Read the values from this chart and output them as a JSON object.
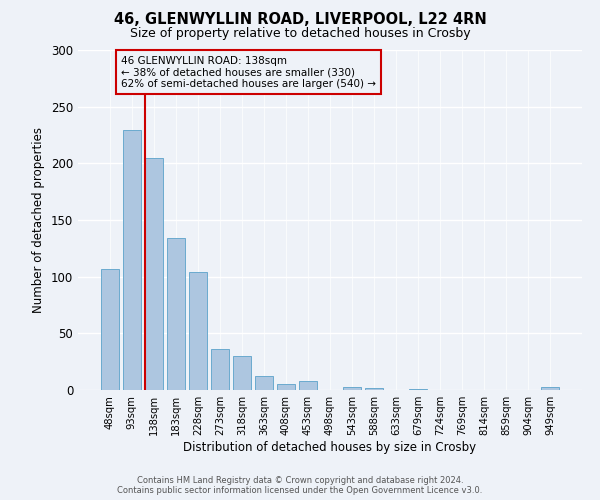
{
  "title": "46, GLENWYLLIN ROAD, LIVERPOOL, L22 4RN",
  "subtitle": "Size of property relative to detached houses in Crosby",
  "xlabel": "Distribution of detached houses by size in Crosby",
  "ylabel": "Number of detached properties",
  "categories": [
    "48sqm",
    "93sqm",
    "138sqm",
    "183sqm",
    "228sqm",
    "273sqm",
    "318sqm",
    "363sqm",
    "408sqm",
    "453sqm",
    "498sqm",
    "543sqm",
    "588sqm",
    "633sqm",
    "679sqm",
    "724sqm",
    "769sqm",
    "814sqm",
    "859sqm",
    "904sqm",
    "949sqm"
  ],
  "values": [
    107,
    229,
    205,
    134,
    104,
    36,
    30,
    12,
    5,
    8,
    0,
    3,
    2,
    0,
    1,
    0,
    0,
    0,
    0,
    0,
    3
  ],
  "bar_color": "#adc6e0",
  "bar_edge_color": "#6aaacf",
  "reference_line_index": 2,
  "reference_line_color": "#cc0000",
  "annotation_title": "46 GLENWYLLIN ROAD: 138sqm",
  "annotation_line1": "← 38% of detached houses are smaller (330)",
  "annotation_line2": "62% of semi-detached houses are larger (540) →",
  "annotation_box_color": "#cc0000",
  "ylim": [
    0,
    300
  ],
  "yticks": [
    0,
    50,
    100,
    150,
    200,
    250,
    300
  ],
  "footer1": "Contains HM Land Registry data © Crown copyright and database right 2024.",
  "footer2": "Contains public sector information licensed under the Open Government Licence v3.0.",
  "background_color": "#eef2f8"
}
